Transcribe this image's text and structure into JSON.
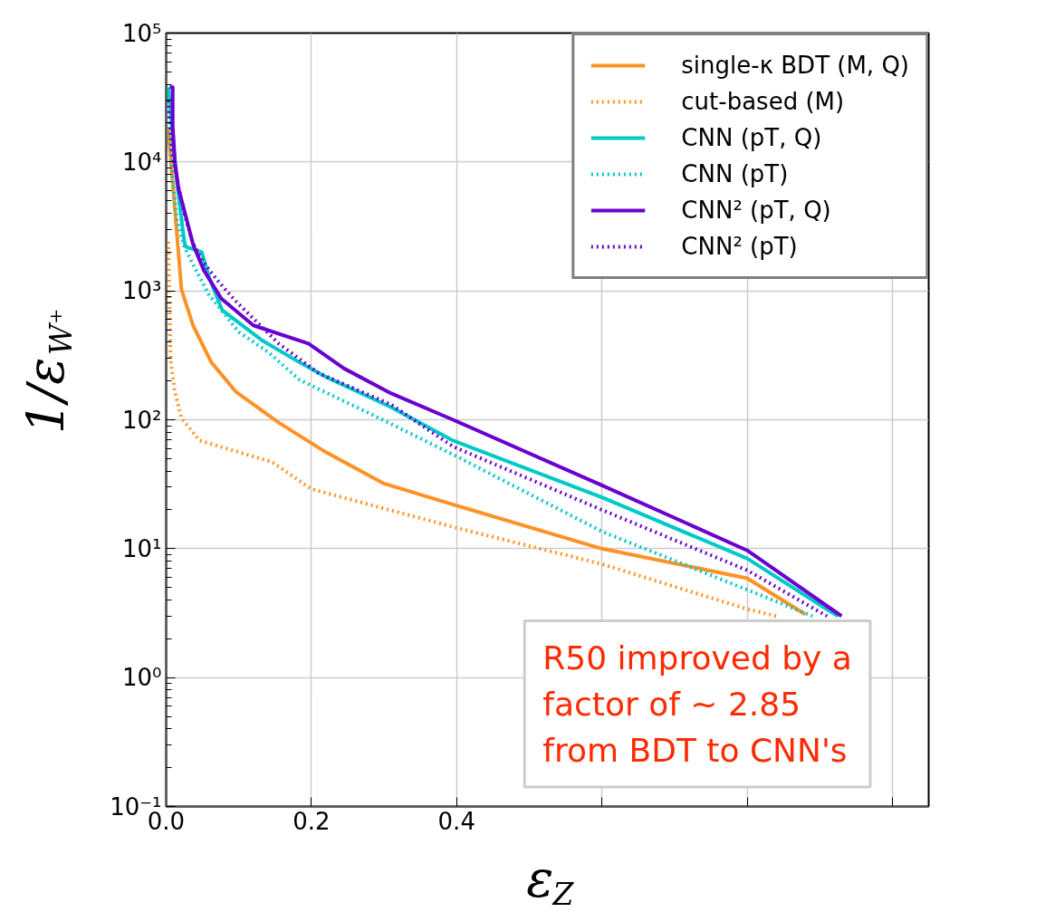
{
  "chart_data": {
    "type": "line",
    "xlabel": "ε$_{Z}$",
    "ylabel": "1/ε$_{W⁺}$",
    "log": "y",
    "grid": true,
    "legend": "top right",
    "xlim": [
      0,
      1.05
    ],
    "xticks": [
      {
        "value": 0,
        "label": "0.0"
      },
      {
        "value": 0.2,
        "label": "0.2"
      },
      {
        "value": 0.4,
        "label": "0.4"
      },
      {
        "value": 0.6,
        "label": null
      },
      {
        "value": 0.8,
        "label": null
      },
      {
        "value": 1.0,
        "label": null
      }
    ],
    "ylim": [
      0.1,
      100000
    ],
    "yticks": [
      {
        "value": 0.1,
        "label": "10⁻¹"
      },
      {
        "value": 1,
        "label": "10⁰"
      },
      {
        "value": 10,
        "label": "10¹"
      },
      {
        "value": 100,
        "label": "10²"
      },
      {
        "value": 1000,
        "label": "10³"
      },
      {
        "value": 10000,
        "label": "10⁴"
      },
      {
        "value": 100000,
        "label": "10⁵"
      }
    ],
    "series": [
      {
        "name": "single-κ BDT (M, Q)",
        "color": "#ff9226",
        "line_style": "solid",
        "x": [
          0.003,
          0.021,
          0.037,
          0.062,
          0.096,
          0.155,
          0.22,
          0.3,
          0.395,
          0.6,
          0.8,
          0.88
        ],
        "values": [
          18000,
          1030,
          540,
          280,
          165,
          95,
          56,
          32,
          22,
          10,
          5.9,
          3.1
        ]
      },
      {
        "name": "cut-based (M)",
        "color": "#ff9226",
        "line_style": "dotted",
        "x": [
          0.003,
          0.006,
          0.012,
          0.021,
          0.046,
          0.146,
          0.2,
          0.4,
          0.6,
          0.8,
          0.84
        ],
        "values": [
          2400,
          295,
          165,
          103,
          69,
          47,
          29,
          14.5,
          7.6,
          3.4,
          3.0
        ]
      },
      {
        "name": "CNN (pT, Q)",
        "color": "#00c8c8",
        "line_style": "solid",
        "x": [
          0.003,
          0.012,
          0.015,
          0.025,
          0.027,
          0.049,
          0.059,
          0.077,
          0.133,
          0.183,
          0.22,
          0.31,
          0.395,
          0.6,
          0.8,
          0.906,
          0.925
        ],
        "values": [
          38000,
          10000,
          6800,
          2400,
          2200,
          2000,
          1280,
          710,
          410,
          280,
          215,
          125,
          69,
          25,
          8.4,
          3.5,
          3.0
        ]
      },
      {
        "name": "CNN (pT)",
        "color": "#00c8c8",
        "line_style": "dotted",
        "x": [
          0.003,
          0.008,
          0.015,
          0.025,
          0.037,
          0.059,
          0.1,
          0.142,
          0.183,
          0.295,
          0.4,
          0.6,
          0.8,
          0.89
        ],
        "values": [
          25000,
          8000,
          3500,
          2200,
          1600,
          930,
          480,
          330,
          205,
          102,
          52,
          13.6,
          4.8,
          3.0
        ]
      },
      {
        "name": "CNN² (pT, Q)",
        "color": "#6a00d0",
        "line_style": "solid",
        "x": [
          0.005,
          0.009,
          0.009,
          0.012,
          0.017,
          0.027,
          0.037,
          0.052,
          0.076,
          0.12,
          0.196,
          0.245,
          0.31,
          0.395,
          0.6,
          0.8,
          0.93
        ],
        "values": [
          38000,
          38000,
          19000,
          10000,
          6200,
          3800,
          2300,
          1440,
          870,
          540,
          390,
          250,
          160,
          100,
          31,
          9.7,
          3.0
        ]
      },
      {
        "name": "CNN² (pT)",
        "color": "#6a00d0",
        "line_style": "dotted",
        "x": [
          0.003,
          0.008,
          0.017,
          0.025,
          0.036,
          0.05,
          0.071,
          0.096,
          0.155,
          0.21,
          0.31,
          0.395,
          0.6,
          0.8,
          0.91
        ],
        "values": [
          30000,
          12000,
          6400,
          4000,
          2400,
          1700,
          1200,
          830,
          390,
          230,
          131,
          62,
          20,
          6.8,
          3.0
        ]
      }
    ],
    "annotations": [
      "R50 improved by a\nfactor of ~ 2.85\nfrom BDT to CNN's"
    ]
  }
}
